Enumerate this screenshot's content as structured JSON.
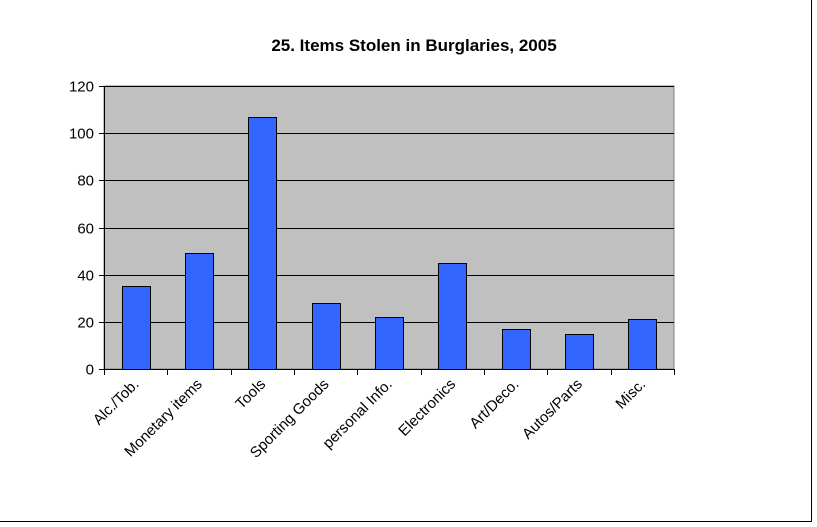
{
  "chart_data": {
    "type": "bar",
    "title": "25.  Items Stolen in Burglaries, 2005",
    "xlabel": "",
    "ylabel": "",
    "categories": [
      "Alc./Tob.",
      "Monetary items",
      "Tools",
      "Sporting Goods",
      "personal Info.",
      "Electronics",
      "Art/Deco.",
      "Autos/Parts",
      "Misc."
    ],
    "values": [
      35,
      49,
      107,
      28,
      22,
      45,
      17,
      15,
      21
    ],
    "ylim": [
      0,
      120
    ],
    "yticks": [
      "0",
      "20",
      "40",
      "60",
      "80",
      "100",
      "120"
    ],
    "grid": true,
    "legend": "none",
    "colors": {
      "bar_fill": "#3366FF",
      "bar_stroke": "#000000",
      "plot_bg": "#C0C0C0",
      "gridline": "#000000"
    }
  }
}
